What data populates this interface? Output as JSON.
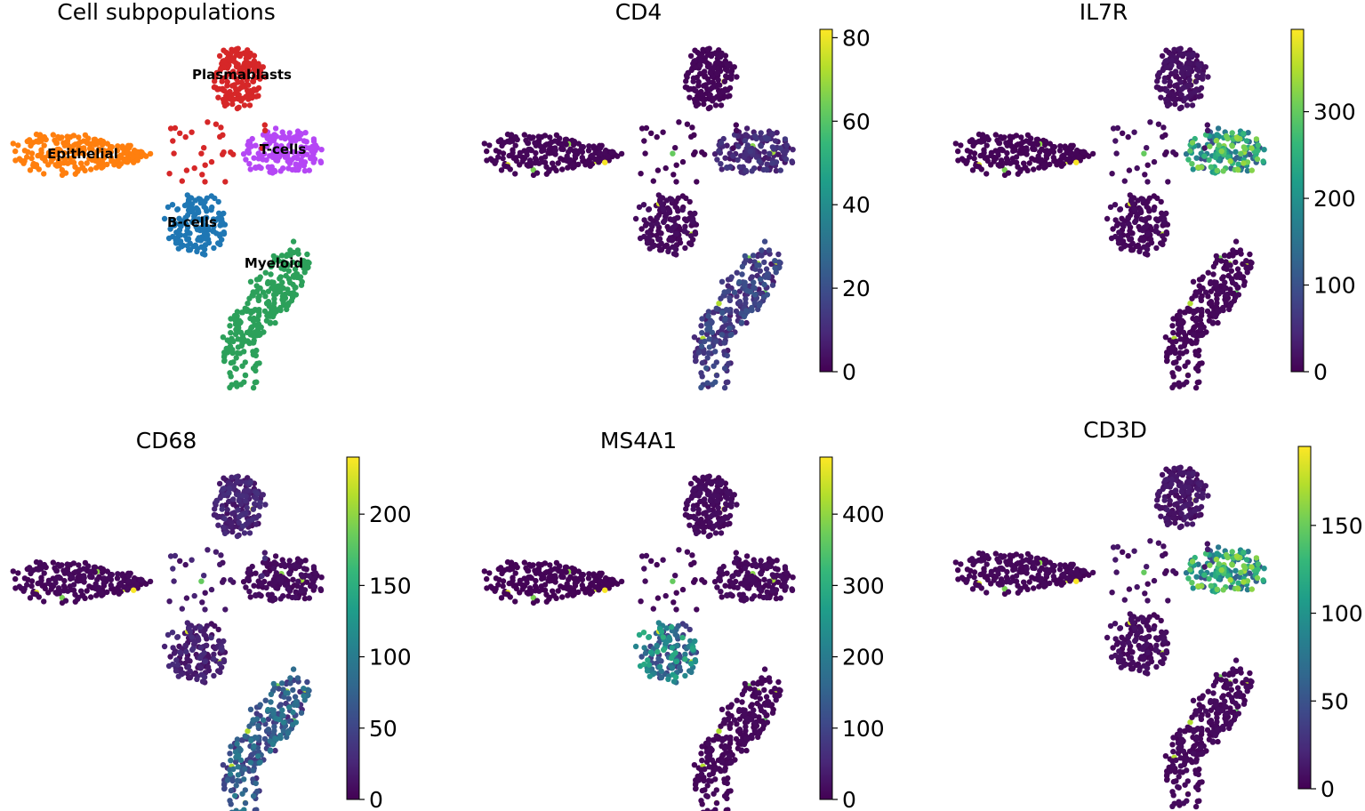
{
  "chart_data": [
    {
      "type": "scatter",
      "title": "Cell subpopulations",
      "color_by": "cluster",
      "clusters": [
        {
          "name": "Plasmablasts",
          "label": "Plasmablasts",
          "color": "#d62728"
        },
        {
          "name": "T-cells",
          "label": "T-cells",
          "color": "#b547f5"
        },
        {
          "name": "Epithelial",
          "label": "Epithelial",
          "color": "#ff7f0e"
        },
        {
          "name": "B-cells",
          "label": "B-cells",
          "color": "#1f77b4"
        },
        {
          "name": "Myeloid",
          "label": "Myeloid",
          "color": "#2ca05a"
        }
      ]
    },
    {
      "type": "scatter",
      "title": "CD4",
      "gene": "CD4",
      "colormap": "viridis",
      "vmin": 0,
      "vmax": 82,
      "colorbar_ticks": [
        0,
        20,
        40,
        60,
        80
      ],
      "expression": {
        "Plasmablasts": 1,
        "T-cells": 9,
        "Epithelial": 1,
        "B-cells": 2,
        "Myeloid": 14
      }
    },
    {
      "type": "scatter",
      "title": "IL7R",
      "gene": "IL7R",
      "colormap": "viridis",
      "vmin": 0,
      "vmax": 395,
      "colorbar_ticks": [
        0,
        100,
        200,
        300
      ],
      "expression": {
        "Plasmablasts": 15,
        "T-cells": 210,
        "Epithelial": 3,
        "B-cells": 8,
        "Myeloid": 6
      }
    },
    {
      "type": "scatter",
      "title": "CD68",
      "gene": "CD68",
      "colormap": "viridis",
      "vmin": 0,
      "vmax": 240,
      "colorbar_ticks": [
        0,
        50,
        100,
        150,
        200
      ],
      "expression": {
        "Plasmablasts": 22,
        "T-cells": 6,
        "Epithelial": 4,
        "B-cells": 20,
        "Myeloid": 65
      }
    },
    {
      "type": "scatter",
      "title": "MS4A1",
      "gene": "MS4A1",
      "colormap": "viridis",
      "vmin": 0,
      "vmax": 480,
      "colorbar_ticks": [
        0,
        100,
        200,
        300,
        400
      ],
      "expression": {
        "Plasmablasts": 12,
        "T-cells": 10,
        "Epithelial": 3,
        "B-cells": 190,
        "Myeloid": 8
      }
    },
    {
      "type": "scatter",
      "title": "CD3D",
      "gene": "CD3D",
      "colormap": "viridis",
      "vmin": 0,
      "vmax": 195,
      "colorbar_ticks": [
        0,
        50,
        100,
        150
      ],
      "expression": {
        "Plasmablasts": 10,
        "T-cells": 105,
        "Epithelial": 3,
        "B-cells": 6,
        "Myeloid": 4
      }
    }
  ]
}
